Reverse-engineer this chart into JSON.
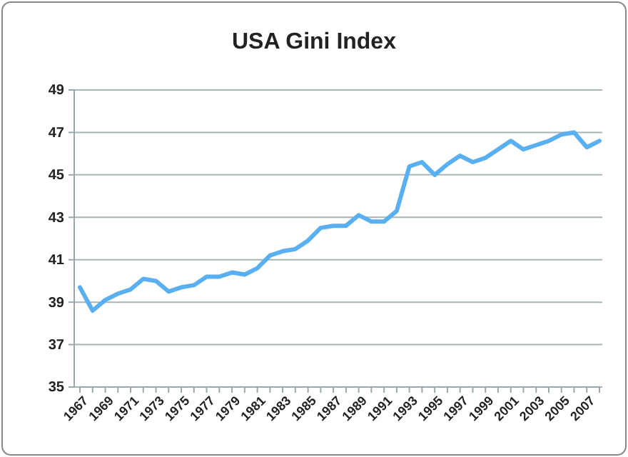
{
  "chart_data": {
    "type": "line",
    "title": "USA Gini Index",
    "categories": [
      "1967",
      null,
      "1969",
      null,
      "1971",
      null,
      "1973",
      null,
      "1975",
      null,
      "1977",
      null,
      "1979",
      null,
      "1981",
      null,
      "1983",
      null,
      "1985",
      null,
      "1987",
      null,
      "1989",
      null,
      "1991",
      null,
      "1993",
      null,
      "1995",
      null,
      "1997",
      null,
      "1999",
      null,
      "2001",
      null,
      "2003",
      null,
      "2005",
      null,
      "2007",
      null
    ],
    "series": [
      {
        "color": "#5aaff0",
        "values": [
          39.7,
          38.6,
          39.1,
          39.4,
          39.6,
          40.1,
          40.0,
          39.5,
          39.7,
          39.8,
          40.2,
          40.2,
          40.4,
          40.3,
          40.6,
          41.2,
          41.4,
          41.5,
          41.9,
          42.5,
          42.6,
          42.6,
          43.1,
          42.8,
          42.8,
          43.3,
          45.4,
          45.6,
          45.0,
          45.5,
          45.9,
          45.6,
          45.8,
          46.2,
          46.6,
          46.2,
          46.4,
          46.6,
          46.9,
          47.0,
          46.3,
          46.6
        ]
      }
    ],
    "ylim": [
      35,
      49
    ],
    "yticks": [
      35,
      37,
      39,
      41,
      43,
      45,
      47,
      49
    ],
    "grid": "y",
    "marker": "none",
    "line_style": "solid"
  }
}
